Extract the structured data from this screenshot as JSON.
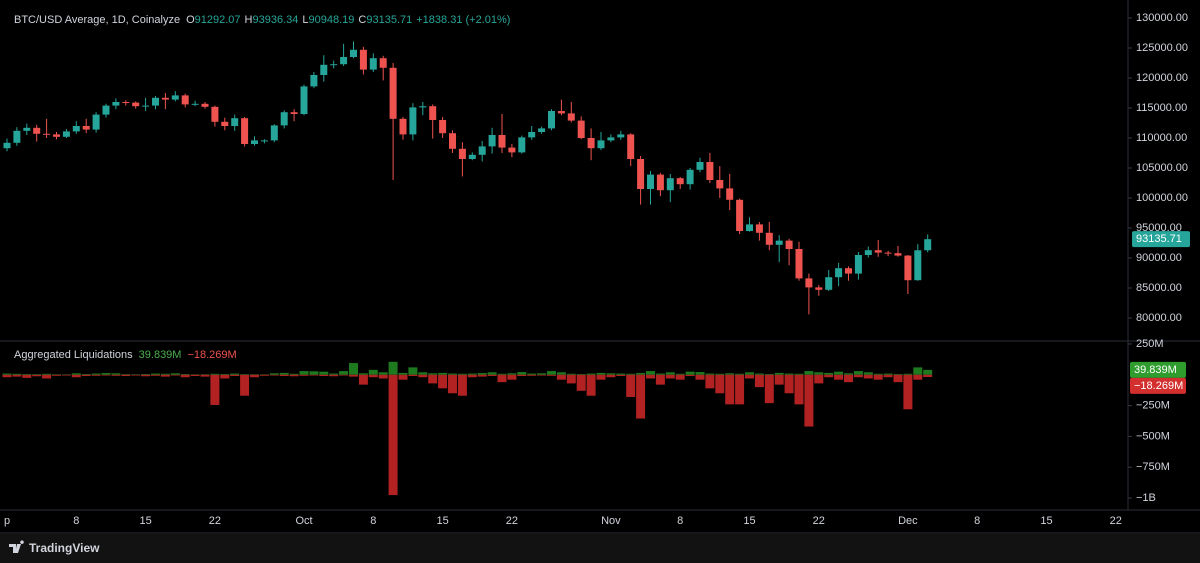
{
  "chart_data": [
    {
      "type": "candlestick",
      "title": "BTC/USD Average, 1D, Coinalyze",
      "ohlc_labels": [
        "O",
        "H",
        "L",
        "C"
      ],
      "change": "+1838.31 (+2.01%)",
      "up_color": "#26a69a",
      "down_color": "#ef5350",
      "grid": false,
      "categories": [
        "p",
        null,
        null,
        null,
        null,
        null,
        null,
        "8",
        null,
        null,
        null,
        null,
        null,
        null,
        "15",
        null,
        null,
        null,
        null,
        null,
        null,
        "22",
        null,
        null,
        null,
        null,
        null,
        null,
        null,
        null,
        "Oct",
        null,
        null,
        null,
        null,
        null,
        null,
        "8",
        null,
        null,
        null,
        null,
        null,
        null,
        "15",
        null,
        null,
        null,
        null,
        null,
        null,
        "22",
        null,
        null,
        null,
        null,
        null,
        null,
        null,
        null,
        null,
        "Nov",
        null,
        null,
        null,
        null,
        null,
        null,
        "8",
        null,
        null,
        null,
        null,
        null,
        null,
        "15",
        null,
        null,
        null,
        null,
        null,
        null,
        "22",
        null,
        null,
        null,
        null,
        null,
        null,
        null,
        null,
        "Dec",
        null,
        null,
        null,
        null,
        null,
        null,
        "8",
        null,
        null,
        null,
        null,
        null,
        null,
        "15",
        null,
        null,
        null,
        null,
        null,
        null,
        "22",
        null
      ],
      "open": [
        108300,
        109200,
        111200,
        111700,
        110700,
        110600,
        110200,
        111100,
        112000,
        111400,
        113900,
        115400,
        116000,
        115900,
        115300,
        115400,
        116700,
        116400,
        117100,
        115600,
        115700,
        115200,
        112700,
        112000,
        113300,
        109000,
        109600,
        109600,
        112100,
        114300,
        114000,
        118600,
        120500,
        122200,
        122300,
        123500,
        124700,
        121400,
        123300,
        121700,
        113200,
        110600,
        115100,
        115300,
        113000,
        110800,
        108200,
        106500,
        107200,
        108600,
        110500,
        108400,
        107600,
        110100,
        111000,
        111600,
        114500,
        114100,
        112900,
        110000,
        108300,
        109600,
        110100,
        110600,
        106500,
        101500,
        103900,
        101300,
        103300,
        102300,
        104700,
        106000,
        103000,
        101600,
        99700,
        94500,
        95600,
        94200,
        92200,
        92900,
        91500,
        86600,
        85100,
        84700,
        86800,
        88300,
        87400,
        90500,
        91300,
        90900,
        90800,
        90400,
        86300,
        91292.07,
        null,
        null,
        null,
        null,
        null,
        null,
        null,
        null,
        null,
        null,
        null,
        null,
        null,
        null,
        null,
        null,
        null,
        null,
        null,
        null
      ],
      "high": [
        109900,
        111800,
        112400,
        112200,
        113200,
        111000,
        111500,
        112800,
        113200,
        114300,
        115700,
        116600,
        116300,
        116100,
        116700,
        117000,
        117500,
        117800,
        117400,
        116200,
        116000,
        115400,
        113400,
        113900,
        113500,
        110300,
        109800,
        112300,
        114600,
        114800,
        118900,
        121000,
        123800,
        122900,
        125700,
        126100,
        125200,
        124100,
        123700,
        122500,
        113500,
        115800,
        116000,
        115600,
        113500,
        111300,
        109300,
        107600,
        109500,
        111700,
        114000,
        109000,
        110400,
        112000,
        111900,
        114800,
        116400,
        116000,
        113600,
        111600,
        111000,
        110600,
        111200,
        110800,
        107000,
        104500,
        104200,
        104000,
        103500,
        105000,
        106700,
        107500,
        105300,
        104000,
        99900,
        96800,
        96000,
        96000,
        93800,
        93200,
        92700,
        87400,
        85500,
        88000,
        89200,
        88600,
        91000,
        91900,
        93000,
        91200,
        92000,
        90500,
        92300,
        93936.34,
        null,
        null,
        null,
        null,
        null,
        null,
        null,
        null,
        null,
        null,
        null,
        null,
        null,
        null,
        null,
        null,
        null,
        null,
        null,
        null
      ],
      "low": [
        107800,
        108700,
        110500,
        109400,
        110000,
        109800,
        110000,
        110700,
        110800,
        110900,
        113400,
        114800,
        115400,
        114900,
        114500,
        114800,
        114800,
        116100,
        115100,
        115300,
        114900,
        111900,
        111300,
        111200,
        108600,
        108700,
        109100,
        109300,
        111600,
        112800,
        113800,
        118300,
        119400,
        121600,
        122000,
        123300,
        120600,
        121000,
        119600,
        103000,
        109700,
        109600,
        113800,
        109900,
        110000,
        107500,
        103600,
        106300,
        106100,
        107400,
        107500,
        106800,
        107400,
        109700,
        110700,
        111300,
        113800,
        112600,
        109800,
        106300,
        108000,
        109300,
        109700,
        105300,
        98900,
        98900,
        100300,
        99300,
        101500,
        101400,
        104300,
        102500,
        100000,
        98000,
        94000,
        94400,
        92900,
        91300,
        89300,
        88800,
        86200,
        80600,
        83700,
        84500,
        85300,
        86200,
        86400,
        90100,
        90200,
        90300,
        90200,
        84000,
        86200,
        90948.19,
        null,
        null,
        null,
        null,
        null,
        null,
        null,
        null,
        null,
        null,
        null,
        null,
        null,
        null,
        null,
        null,
        null,
        null,
        null,
        null
      ],
      "close": [
        109200,
        111200,
        111700,
        110700,
        110600,
        110200,
        111100,
        112000,
        111400,
        113900,
        115400,
        116000,
        115900,
        115300,
        115400,
        116700,
        116400,
        117100,
        115600,
        115700,
        115200,
        112700,
        112000,
        113300,
        109000,
        109600,
        109600,
        112100,
        114300,
        114000,
        118600,
        120500,
        122200,
        122300,
        123500,
        124700,
        121400,
        123300,
        121700,
        113200,
        110600,
        115100,
        115300,
        113000,
        110800,
        108200,
        106500,
        107200,
        108600,
        110500,
        108400,
        107600,
        110100,
        111000,
        111600,
        114500,
        114100,
        112900,
        110000,
        108300,
        109600,
        110100,
        110600,
        106500,
        101500,
        103900,
        101300,
        103300,
        102300,
        104700,
        106000,
        103000,
        101600,
        99700,
        94500,
        95600,
        94200,
        92200,
        92900,
        91500,
        86600,
        85100,
        84700,
        86800,
        88300,
        87400,
        90500,
        91300,
        90900,
        90800,
        90400,
        86300,
        91290,
        93135.71,
        null,
        null,
        null,
        null,
        null,
        null,
        null,
        null,
        null,
        null,
        null,
        null,
        null,
        null,
        null,
        null,
        null,
        null,
        null,
        null
      ],
      "ylim": [
        76333,
        131667
      ],
      "yticks": [
        {
          "value": 130000,
          "label": "130000.00"
        },
        {
          "value": 125000,
          "label": "125000.00"
        },
        {
          "value": 120000,
          "label": "120000.00"
        },
        {
          "value": 115000,
          "label": "115000.00"
        },
        {
          "value": 110000,
          "label": "110000.00"
        },
        {
          "value": 105000,
          "label": "105000.00"
        },
        {
          "value": 100000,
          "label": "100000.00"
        },
        {
          "value": 95000,
          "label": "95000.00"
        },
        {
          "value": 90000,
          "label": "90000.00"
        },
        {
          "value": 85000,
          "label": "85000.00"
        },
        {
          "value": 80000,
          "label": "80000.00"
        }
      ]
    },
    {
      "type": "bar",
      "title": "Aggregated Liquidations",
      "grid": false,
      "series": [
        {
          "color": "#1e7a1e",
          "values": [
            10,
            8,
            6,
            5,
            8,
            4,
            3,
            12,
            6,
            10,
            14,
            12,
            5,
            4,
            6,
            10,
            8,
            12,
            6,
            3,
            4,
            8,
            6,
            10,
            5,
            4,
            3,
            12,
            15,
            8,
            30,
            28,
            25,
            10,
            30,
            95,
            12,
            40,
            20,
            105,
            15,
            60,
            20,
            12,
            15,
            10,
            8,
            10,
            14,
            20,
            8,
            12,
            22,
            10,
            12,
            30,
            20,
            8,
            6,
            10,
            15,
            12,
            10,
            8,
            14,
            30,
            10,
            20,
            8,
            25,
            22,
            10,
            8,
            12,
            8,
            20,
            10,
            6,
            15,
            10,
            8,
            30,
            20,
            15,
            25,
            12,
            30,
            20,
            8,
            10,
            6,
            8,
            60,
            39.839
          ],
          "value_labels": [
            null,
            null,
            null,
            null,
            null,
            null,
            null,
            null,
            null,
            null,
            null,
            null,
            null,
            null,
            null,
            null,
            null,
            null,
            null,
            null,
            null,
            null,
            null,
            null,
            null,
            null,
            null,
            null,
            null,
            null,
            null,
            null,
            null,
            null,
            null,
            null,
            null,
            null,
            null,
            null,
            null,
            null,
            null,
            null,
            null,
            null,
            null,
            null,
            null,
            null,
            null,
            null,
            null,
            null,
            null,
            null,
            null,
            null,
            null,
            null,
            null,
            null,
            null,
            null,
            null,
            null,
            null,
            null,
            null,
            null,
            null,
            null,
            null,
            null,
            null,
            null,
            null,
            null,
            null,
            null,
            null,
            null,
            null,
            null,
            null,
            null,
            null,
            null,
            null,
            null,
            null,
            null,
            null,
            "39.839M"
          ]
        },
        {
          "color": "#b22222",
          "values": [
            -20,
            -15,
            -25,
            -12,
            -30,
            -8,
            -6,
            -20,
            -10,
            -8,
            -6,
            -8,
            -10,
            -6,
            -12,
            -8,
            -15,
            -6,
            -20,
            -10,
            -15,
            -245,
            -30,
            -10,
            -170,
            -20,
            -8,
            -6,
            -10,
            -12,
            -8,
            -6,
            -10,
            -12,
            -6,
            -15,
            -80,
            -20,
            -30,
            -976,
            -40,
            -10,
            -20,
            -70,
            -110,
            -150,
            -170,
            -20,
            -15,
            -10,
            -60,
            -40,
            -10,
            -8,
            -6,
            -8,
            -40,
            -70,
            -130,
            -170,
            -40,
            -20,
            -10,
            -180,
            -355,
            -30,
            -80,
            -30,
            -40,
            -10,
            -40,
            -110,
            -150,
            -240,
            -240,
            -30,
            -100,
            -230,
            -80,
            -150,
            -240,
            -420,
            -70,
            -20,
            -40,
            -60,
            -20,
            -30,
            -40,
            -20,
            -60,
            -280,
            -40,
            -18.269
          ],
          "value_labels": [
            null,
            null,
            null,
            null,
            null,
            null,
            null,
            null,
            null,
            null,
            null,
            null,
            null,
            null,
            null,
            null,
            null,
            null,
            null,
            null,
            null,
            null,
            null,
            null,
            null,
            null,
            null,
            null,
            null,
            null,
            null,
            null,
            null,
            null,
            null,
            null,
            null,
            null,
            null,
            null,
            null,
            null,
            null,
            null,
            null,
            null,
            null,
            null,
            null,
            null,
            null,
            null,
            null,
            null,
            null,
            null,
            null,
            null,
            null,
            null,
            null,
            null,
            null,
            null,
            null,
            null,
            null,
            null,
            null,
            null,
            null,
            null,
            null,
            null,
            null,
            null,
            null,
            null,
            null,
            null,
            null,
            null,
            null,
            null,
            null,
            null,
            null,
            null,
            null,
            null,
            null,
            null,
            null,
            "−18.269M"
          ]
        }
      ],
      "ylim": [
        -1097,
        274
      ],
      "yticks": [
        {
          "value": 250,
          "label": "250M"
        },
        {
          "value": -250,
          "label": "−250M"
        },
        {
          "value": -500,
          "label": "−500M"
        },
        {
          "value": -750,
          "label": "−750M"
        },
        {
          "value": -1000,
          "label": "−1B"
        }
      ]
    }
  ],
  "footer": {
    "brand": "TradingView"
  }
}
